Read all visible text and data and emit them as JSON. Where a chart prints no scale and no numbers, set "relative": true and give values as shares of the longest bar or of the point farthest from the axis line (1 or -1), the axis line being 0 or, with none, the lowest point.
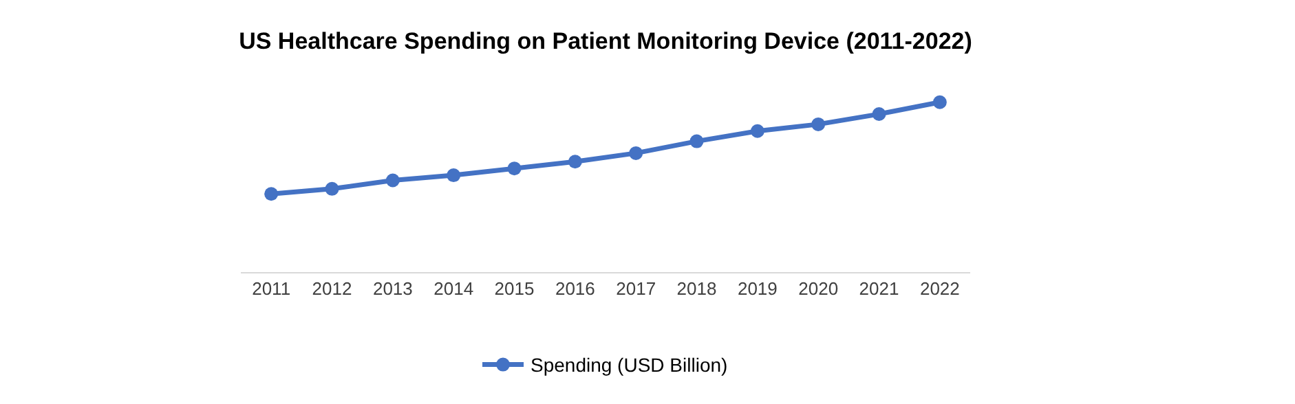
{
  "chart_data": {
    "type": "line",
    "title": "US Healthcare Spending on Patient Monitoring Device (2011-2022)",
    "categories": [
      "2011",
      "2012",
      "2013",
      "2014",
      "2015",
      "2016",
      "2017",
      "2018",
      "2019",
      "2020",
      "2021",
      "2022"
    ],
    "relative": true,
    "series": [
      {
        "name": "Spending (USD Billion)",
        "color": "#4472c4",
        "values": [
          0.46,
          0.49,
          0.54,
          0.57,
          0.61,
          0.65,
          0.7,
          0.77,
          0.83,
          0.87,
          0.93,
          1.0
        ]
      }
    ],
    "marker": "circle",
    "legend": "bottom"
  }
}
